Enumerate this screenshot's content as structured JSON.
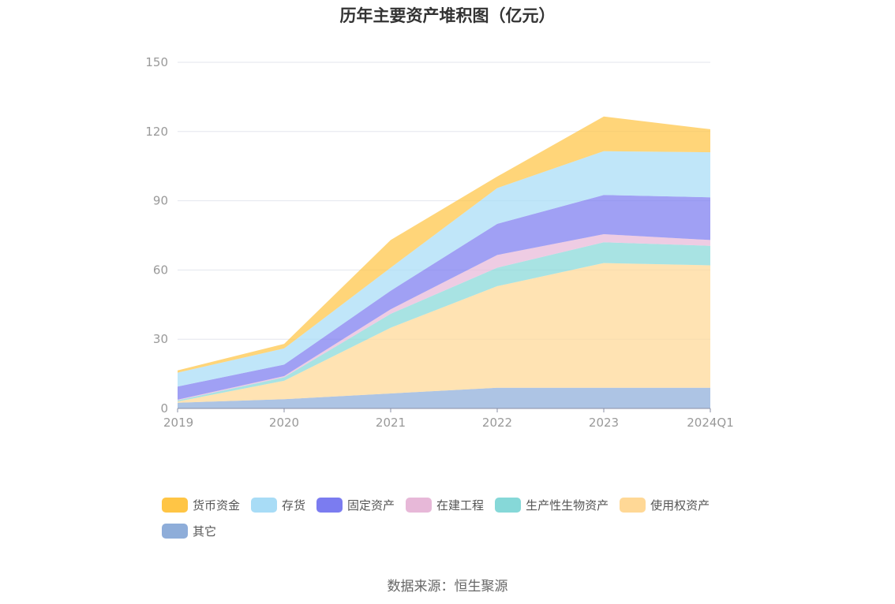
{
  "chart_data": {
    "type": "area",
    "stacked": true,
    "title": "历年主要资产堆积图（亿元）",
    "categories": [
      "2019",
      "2020",
      "2021",
      "2022",
      "2023",
      "2024Q1"
    ],
    "ylim": [
      0,
      150
    ],
    "yticks": [
      0,
      30,
      60,
      90,
      120,
      150
    ],
    "grid": true,
    "legend_position": "bottom",
    "series": [
      {
        "name": "其它",
        "color": "#8eadd9",
        "values": [
          2.5,
          4,
          6.5,
          9,
          9,
          9
        ]
      },
      {
        "name": "使用权资产",
        "color": "#ffd896",
        "values": [
          0.5,
          8,
          28.5,
          44,
          54,
          53
        ]
      },
      {
        "name": "生产性生物资产",
        "color": "#86d8d8",
        "values": [
          0.5,
          1.5,
          6,
          8,
          9,
          8.5
        ]
      },
      {
        "name": "在建工程",
        "color": "#e7b8d8",
        "values": [
          0.3,
          0.5,
          2,
          5.5,
          3.5,
          2.5
        ]
      },
      {
        "name": "固定资产",
        "color": "#7b7cf0",
        "values": [
          5.7,
          5,
          8,
          13.5,
          17,
          18.5
        ]
      },
      {
        "name": "存货",
        "color": "#a8dcf6",
        "values": [
          6,
          7,
          10,
          15.5,
          19,
          19.5
        ]
      },
      {
        "name": "货币资金",
        "color": "#ffc545",
        "values": [
          1,
          2,
          12,
          5,
          15,
          10
        ]
      }
    ]
  },
  "source_text": "数据来源：恒生聚源"
}
